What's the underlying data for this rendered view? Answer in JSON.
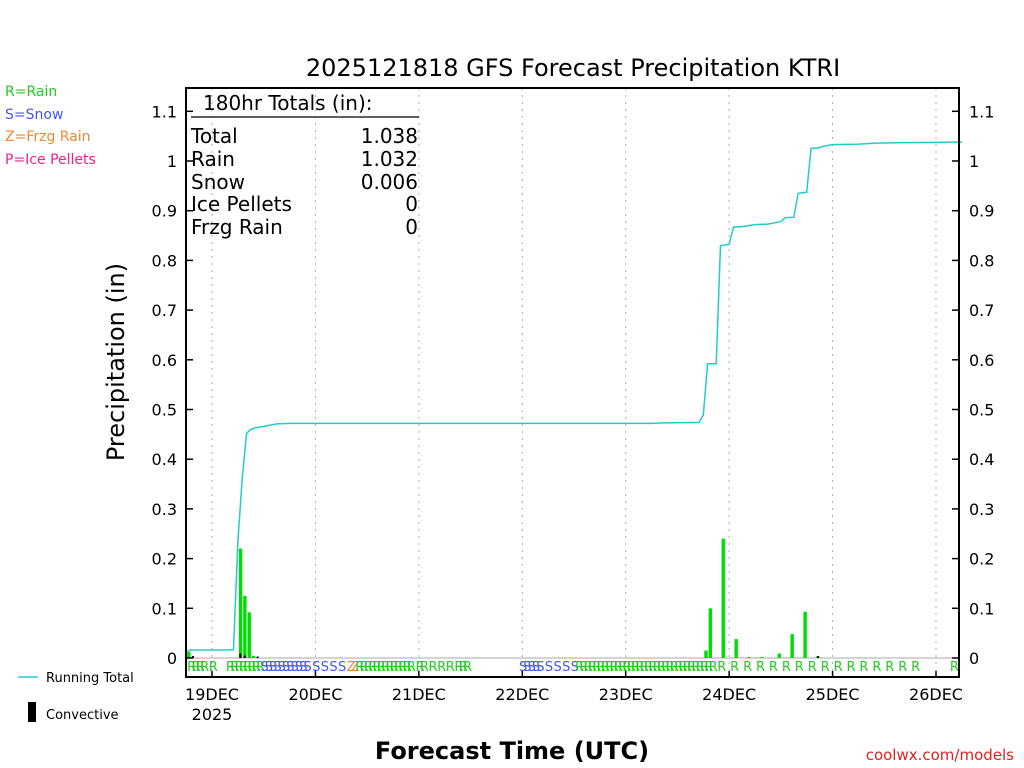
{
  "chart_data": {
    "type": "bar",
    "title": "2025121818 GFS Forecast Precipitation KTRI",
    "xlabel": "Forecast Time (UTC)",
    "ylabel": "Precipitation (in)",
    "ylim": [
      0,
      1.1
    ],
    "yticks": [
      0,
      0.1,
      0.2,
      0.3,
      0.4,
      0.5,
      0.6,
      0.7,
      0.8,
      0.9,
      1,
      1.1
    ],
    "ytick_labels": [
      "0",
      "0.1",
      "0.2",
      "0.3",
      "0.4",
      "0.5",
      "0.6",
      "0.7",
      "0.8",
      "0.9",
      "1",
      "1.1"
    ],
    "xlim_hours": [
      0,
      180
    ],
    "xtick_hours": [
      6,
      30,
      54,
      78,
      102,
      126,
      150,
      174
    ],
    "xtick_labels": [
      "19DEC",
      "20DEC",
      "21DEC",
      "22DEC",
      "23DEC",
      "24DEC",
      "25DEC",
      "26DEC"
    ],
    "year_label": "2025",
    "grid": true,
    "totals_box": {
      "heading": "180hr Totals (in):",
      "rows": [
        {
          "label": "Total",
          "value": "1.038"
        },
        {
          "label": "Rain",
          "value": "1.032"
        },
        {
          "label": "Snow",
          "value": "0.006"
        },
        {
          "label": "Ice Pellets",
          "value": "0"
        },
        {
          "label": "Frzg Rain",
          "value": "0"
        }
      ]
    },
    "type_legend": [
      {
        "text": "R=Rain",
        "color": "#22cc22"
      },
      {
        "text": "S=Snow",
        "color": "#4455ee"
      },
      {
        "text": "Z=Frzg Rain",
        "color": "#ee8833"
      },
      {
        "text": "P=Ice Pellets",
        "color": "#ee2288"
      }
    ],
    "series_legend": [
      {
        "name": "Running Total",
        "color": "#22cccc"
      },
      {
        "name": "Convective",
        "color": "#000000"
      }
    ],
    "series": [
      {
        "name": "Precipitation",
        "color": "#00dd00",
        "points": [
          [
            0,
            0.012
          ],
          [
            12,
            0.22
          ],
          [
            13,
            0.125
          ],
          [
            14,
            0.092
          ],
          [
            15,
            0.004
          ],
          [
            120,
            0.015
          ],
          [
            121,
            0.1
          ],
          [
            124,
            0.24
          ],
          [
            127,
            0.038
          ],
          [
            130,
            0.002
          ],
          [
            133,
            0.002
          ],
          [
            137,
            0.009
          ],
          [
            140,
            0.048
          ],
          [
            143,
            0.093
          ],
          [
            146,
            0.003
          ]
        ]
      },
      {
        "name": "Convective",
        "color": "#000000",
        "points": [
          [
            1,
            0.004
          ],
          [
            12,
            0.009
          ],
          [
            13,
            0.005
          ],
          [
            16,
            0.003
          ],
          [
            146,
            0.004
          ]
        ]
      },
      {
        "name": "Running Total",
        "color": "#22cccc",
        "points": [
          [
            0,
            0.012
          ],
          [
            1,
            0.016
          ],
          [
            9,
            0.016
          ],
          [
            11,
            0.017
          ],
          [
            12,
            0.235
          ],
          [
            13,
            0.36
          ],
          [
            14,
            0.452
          ],
          [
            15,
            0.46
          ],
          [
            16,
            0.463
          ],
          [
            18,
            0.466
          ],
          [
            21,
            0.471
          ],
          [
            24,
            0.472
          ],
          [
            108,
            0.472
          ],
          [
            111,
            0.473
          ],
          [
            119,
            0.474
          ],
          [
            120,
            0.489
          ],
          [
            121,
            0.592
          ],
          [
            123,
            0.592
          ],
          [
            124,
            0.83
          ],
          [
            126,
            0.832
          ],
          [
            127,
            0.867
          ],
          [
            129,
            0.868
          ],
          [
            132,
            0.872
          ],
          [
            135,
            0.873
          ],
          [
            138,
            0.878
          ],
          [
            139,
            0.886
          ],
          [
            141,
            0.887
          ],
          [
            142,
            0.935
          ],
          [
            144,
            0.937
          ],
          [
            145,
            1.025
          ],
          [
            147,
            1.027
          ],
          [
            148,
            1.03
          ],
          [
            150,
            1.033
          ],
          [
            156,
            1.034
          ],
          [
            160,
            1.036
          ],
          [
            166,
            1.037
          ],
          [
            180,
            1.038
          ]
        ]
      }
    ],
    "ptype_markers": [
      {
        "h": 0,
        "t": "R"
      },
      {
        "h": 1,
        "t": "R"
      },
      {
        "h": 2,
        "t": "R"
      },
      {
        "h": 3,
        "t": "R"
      },
      {
        "h": 5,
        "t": "R"
      },
      {
        "h": 9,
        "t": "R"
      },
      {
        "h": 10,
        "t": "R"
      },
      {
        "h": 11,
        "t": "R"
      },
      {
        "h": 12,
        "t": "R"
      },
      {
        "h": 13,
        "t": "R"
      },
      {
        "h": 14,
        "t": "R"
      },
      {
        "h": 15,
        "t": "R"
      },
      {
        "h": 16,
        "t": "R"
      },
      {
        "h": 17,
        "t": "S"
      },
      {
        "h": 18,
        "t": "S"
      },
      {
        "h": 19,
        "t": "S"
      },
      {
        "h": 20,
        "t": "S"
      },
      {
        "h": 21,
        "t": "S"
      },
      {
        "h": 22,
        "t": "S"
      },
      {
        "h": 23,
        "t": "S"
      },
      {
        "h": 24,
        "t": "S"
      },
      {
        "h": 25,
        "t": "S"
      },
      {
        "h": 26,
        "t": "S"
      },
      {
        "h": 27,
        "t": "S"
      },
      {
        "h": 29,
        "t": "S"
      },
      {
        "h": 31,
        "t": "S"
      },
      {
        "h": 33,
        "t": "S"
      },
      {
        "h": 35,
        "t": "S"
      },
      {
        "h": 37,
        "t": "Z"
      },
      {
        "h": 38,
        "t": "Z"
      },
      {
        "h": 39,
        "t": "R"
      },
      {
        "h": 40,
        "t": "R"
      },
      {
        "h": 41,
        "t": "R"
      },
      {
        "h": 42,
        "t": "R"
      },
      {
        "h": 43,
        "t": "R"
      },
      {
        "h": 44,
        "t": "R"
      },
      {
        "h": 45,
        "t": "R"
      },
      {
        "h": 46,
        "t": "R"
      },
      {
        "h": 47,
        "t": "R"
      },
      {
        "h": 48,
        "t": "R"
      },
      {
        "h": 49,
        "t": "R"
      },
      {
        "h": 50,
        "t": "R"
      },
      {
        "h": 51,
        "t": "R"
      },
      {
        "h": 53,
        "t": "R"
      },
      {
        "h": 54,
        "t": "R"
      },
      {
        "h": 56,
        "t": "R"
      },
      {
        "h": 58,
        "t": "R"
      },
      {
        "h": 60,
        "t": "R"
      },
      {
        "h": 62,
        "t": "R"
      },
      {
        "h": 63,
        "t": "R"
      },
      {
        "h": 64,
        "t": "R"
      },
      {
        "h": 77,
        "t": "S"
      },
      {
        "h": 78,
        "t": "S"
      },
      {
        "h": 79,
        "t": "S"
      },
      {
        "h": 80,
        "t": "S"
      },
      {
        "h": 81,
        "t": "S"
      },
      {
        "h": 83,
        "t": "S"
      },
      {
        "h": 85,
        "t": "S"
      },
      {
        "h": 87,
        "t": "S"
      },
      {
        "h": 89,
        "t": "S"
      },
      {
        "h": 90,
        "t": "R"
      },
      {
        "h": 91,
        "t": "R"
      },
      {
        "h": 92,
        "t": "R"
      },
      {
        "h": 93,
        "t": "R"
      },
      {
        "h": 94,
        "t": "R"
      },
      {
        "h": 95,
        "t": "R"
      },
      {
        "h": 96,
        "t": "R"
      },
      {
        "h": 97,
        "t": "R"
      },
      {
        "h": 98,
        "t": "R"
      },
      {
        "h": 99,
        "t": "R"
      },
      {
        "h": 100,
        "t": "R"
      },
      {
        "h": 101,
        "t": "R"
      },
      {
        "h": 102,
        "t": "R"
      },
      {
        "h": 103,
        "t": "R"
      },
      {
        "h": 104,
        "t": "R"
      },
      {
        "h": 105,
        "t": "R"
      },
      {
        "h": 106,
        "t": "R"
      },
      {
        "h": 107,
        "t": "R"
      },
      {
        "h": 108,
        "t": "R"
      },
      {
        "h": 109,
        "t": "R"
      },
      {
        "h": 110,
        "t": "R"
      },
      {
        "h": 111,
        "t": "R"
      },
      {
        "h": 112,
        "t": "R"
      },
      {
        "h": 113,
        "t": "R"
      },
      {
        "h": 114,
        "t": "R"
      },
      {
        "h": 115,
        "t": "R"
      },
      {
        "h": 116,
        "t": "R"
      },
      {
        "h": 117,
        "t": "R"
      },
      {
        "h": 118,
        "t": "R"
      },
      {
        "h": 119,
        "t": "R"
      },
      {
        "h": 120,
        "t": "R"
      },
      {
        "h": 121,
        "t": "R"
      },
      {
        "h": 123,
        "t": "R"
      },
      {
        "h": 126,
        "t": "R"
      },
      {
        "h": 129,
        "t": "R"
      },
      {
        "h": 132,
        "t": "R"
      },
      {
        "h": 135,
        "t": "R"
      },
      {
        "h": 138,
        "t": "R"
      },
      {
        "h": 141,
        "t": "R"
      },
      {
        "h": 144,
        "t": "R"
      },
      {
        "h": 147,
        "t": "R"
      },
      {
        "h": 150,
        "t": "R"
      },
      {
        "h": 153,
        "t": "R"
      },
      {
        "h": 156,
        "t": "R"
      },
      {
        "h": 159,
        "t": "R"
      },
      {
        "h": 162,
        "t": "R"
      },
      {
        "h": 165,
        "t": "R"
      },
      {
        "h": 168,
        "t": "R"
      },
      {
        "h": 177,
        "t": "R"
      }
    ],
    "watermark": "coolwx.com/models",
    "colors": {
      "rain": "#22cc22",
      "snow": "#4455ee",
      "frzg": "#ee8833",
      "ice": "#ee2288",
      "total_line": "#22cccc",
      "bar": "#00dd00",
      "convective": "#000000",
      "grid": "#aaaaaa",
      "watermark": "#dd2222"
    }
  }
}
